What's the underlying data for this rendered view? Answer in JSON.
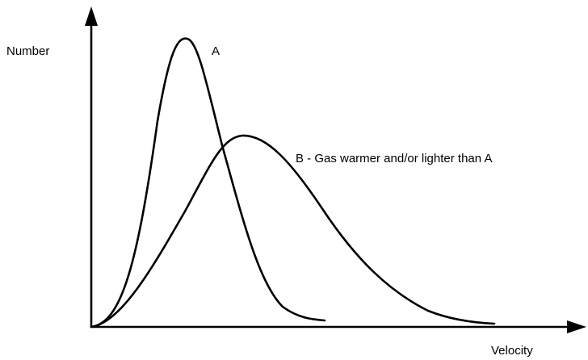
{
  "y_axis_label": "Number",
  "x_axis_label": "Velocity",
  "curve_a_label": "A",
  "curve_b_label": "B - Gas warmer and/or lighter than A"
}
